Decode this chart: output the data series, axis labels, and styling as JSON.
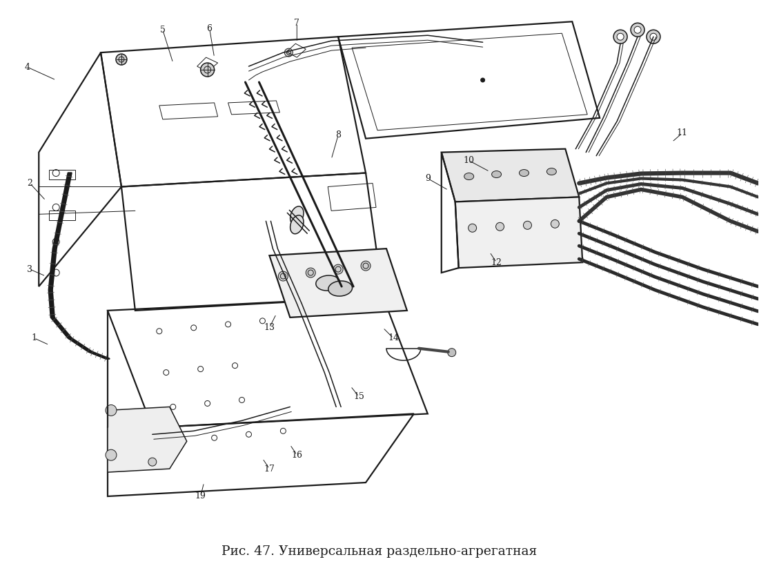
{
  "background_color": "#ffffff",
  "caption": "Рис. 47. Универсальная раздельно-агрегатная",
  "caption_fontsize": 13.5,
  "fig_width": 11.0,
  "fig_height": 8.33,
  "dpi": 100,
  "dc": "#1a1a1a",
  "lw_thin": 0.7,
  "lw_med": 1.1,
  "lw_thick": 1.6,
  "lw_vthick": 2.2
}
